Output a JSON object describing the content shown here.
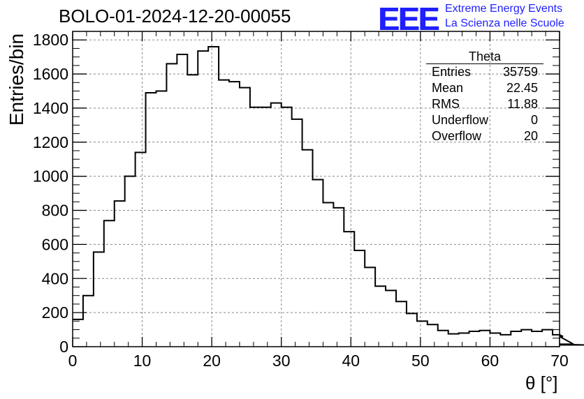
{
  "chart_data": {
    "type": "histogram",
    "title": "BOLO-01-2024-12-20-00055",
    "xlabel": "θ [°]",
    "ylabel": "Entries/bin",
    "xlim": [
      0,
      70
    ],
    "ylim": [
      0,
      1850
    ],
    "grid": true,
    "bin_width": 1.5,
    "x_ticks": [
      "0",
      "10",
      "20",
      "30",
      "40",
      "50",
      "60",
      "70"
    ],
    "y_ticks": [
      "0",
      "200",
      "400",
      "600",
      "800",
      "1000",
      "1200",
      "1400",
      "1600",
      "1800"
    ],
    "values": [
      160,
      300,
      555,
      740,
      855,
      1000,
      1140,
      1490,
      1500,
      1660,
      1715,
      1595,
      1735,
      1760,
      1565,
      1555,
      1520,
      1405,
      1405,
      1430,
      1405,
      1335,
      1155,
      980,
      845,
      815,
      675,
      565,
      465,
      355,
      330,
      265,
      195,
      150,
      130,
      95,
      75,
      80,
      90,
      95,
      80,
      70,
      90,
      100,
      90,
      100,
      70,
      60,
      15,
      10,
      10
    ],
    "stats": {
      "name": "Theta",
      "rows": [
        {
          "label": "Entries",
          "value": "35759"
        },
        {
          "label": "Mean",
          "value": "22.45"
        },
        {
          "label": "RMS",
          "value": "11.88"
        },
        {
          "label": "Underflow",
          "value": "0"
        },
        {
          "label": "Overflow",
          "value": "20"
        }
      ]
    }
  },
  "logo": {
    "text": "EEE",
    "line1": "Extreme Energy Events",
    "line2": "La Scienza nelle Scuole",
    "color": "#1f1fff"
  }
}
